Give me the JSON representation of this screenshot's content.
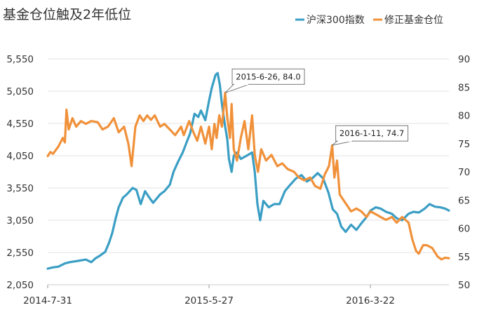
{
  "chart_data": {
    "type": "line",
    "title": "基金仓位触及2年低位",
    "xlabel": "",
    "ylabel": "",
    "x_start": "2014-07-31",
    "x_end": "2016-08-15",
    "x_ticks": [
      {
        "date": "2014-07-31",
        "label": "2014-7-31"
      },
      {
        "date": "2015-05-27",
        "label": "2015-5-27"
      },
      {
        "date": "2016-03-22",
        "label": "2016-3-22"
      }
    ],
    "ylim_left": [
      2050,
      5550
    ],
    "y_ticks_left": [
      "2,050",
      "2,550",
      "3,050",
      "3,550",
      "4,050",
      "4,550",
      "5,050",
      "5,550"
    ],
    "ylim_right": [
      50,
      90
    ],
    "y_ticks_right": [
      "50",
      "55",
      "60",
      "65",
      "70",
      "75",
      "80",
      "85",
      "90"
    ],
    "legend_position": "top-right",
    "grid": "horizontal",
    "series": [
      {
        "name": "沪深300指数",
        "axis": "left",
        "color": "#3a9ec4",
        "points": [
          [
            "2014-07-31",
            2300
          ],
          [
            "2014-08-10",
            2320
          ],
          [
            "2014-08-20",
            2330
          ],
          [
            "2014-09-01",
            2380
          ],
          [
            "2014-09-10",
            2400
          ],
          [
            "2014-09-25",
            2420
          ],
          [
            "2014-10-10",
            2440
          ],
          [
            "2014-10-20",
            2400
          ],
          [
            "2014-10-28",
            2460
          ],
          [
            "2014-11-05",
            2500
          ],
          [
            "2014-11-15",
            2560
          ],
          [
            "2014-11-22",
            2700
          ],
          [
            "2014-11-28",
            2850
          ],
          [
            "2014-12-05",
            3100
          ],
          [
            "2014-12-10",
            3250
          ],
          [
            "2014-12-18",
            3400
          ],
          [
            "2014-12-25",
            3450
          ],
          [
            "2015-01-05",
            3550
          ],
          [
            "2015-01-12",
            3520
          ],
          [
            "2015-01-20",
            3300
          ],
          [
            "2015-01-28",
            3500
          ],
          [
            "2015-02-05",
            3400
          ],
          [
            "2015-02-12",
            3320
          ],
          [
            "2015-02-25",
            3450
          ],
          [
            "2015-03-05",
            3500
          ],
          [
            "2015-03-15",
            3600
          ],
          [
            "2015-03-22",
            3800
          ],
          [
            "2015-03-30",
            3950
          ],
          [
            "2015-04-08",
            4100
          ],
          [
            "2015-04-15",
            4250
          ],
          [
            "2015-04-22",
            4400
          ],
          [
            "2015-04-30",
            4700
          ],
          [
            "2015-05-07",
            4650
          ],
          [
            "2015-05-12",
            4750
          ],
          [
            "2015-05-20",
            4600
          ],
          [
            "2015-05-27",
            4900
          ],
          [
            "2015-06-01",
            5100
          ],
          [
            "2015-06-08",
            5300
          ],
          [
            "2015-06-12",
            5330
          ],
          [
            "2015-06-16",
            5150
          ],
          [
            "2015-06-20",
            4850
          ],
          [
            "2015-06-26",
            4500
          ],
          [
            "2015-06-30",
            4300
          ],
          [
            "2015-07-03",
            4000
          ],
          [
            "2015-07-08",
            3800
          ],
          [
            "2015-07-12",
            4050
          ],
          [
            "2015-07-18",
            4100
          ],
          [
            "2015-07-25",
            4000
          ],
          [
            "2015-08-05",
            4050
          ],
          [
            "2015-08-15",
            4100
          ],
          [
            "2015-08-20",
            3800
          ],
          [
            "2015-08-25",
            3300
          ],
          [
            "2015-08-30",
            3050
          ],
          [
            "2015-09-05",
            3350
          ],
          [
            "2015-09-15",
            3250
          ],
          [
            "2015-09-25",
            3300
          ],
          [
            "2015-10-05",
            3300
          ],
          [
            "2015-10-15",
            3500
          ],
          [
            "2015-10-25",
            3600
          ],
          [
            "2015-11-05",
            3700
          ],
          [
            "2015-11-15",
            3750
          ],
          [
            "2015-11-25",
            3650
          ],
          [
            "2015-12-05",
            3700
          ],
          [
            "2015-12-15",
            3780
          ],
          [
            "2015-12-25",
            3700
          ],
          [
            "2016-01-04",
            3480
          ],
          [
            "2016-01-12",
            3220
          ],
          [
            "2016-01-20",
            3150
          ],
          [
            "2016-01-28",
            2950
          ],
          [
            "2016-02-05",
            2870
          ],
          [
            "2016-02-15",
            2980
          ],
          [
            "2016-02-25",
            2900
          ],
          [
            "2016-03-05",
            3000
          ],
          [
            "2016-03-15",
            3100
          ],
          [
            "2016-03-22",
            3200
          ],
          [
            "2016-04-01",
            3250
          ],
          [
            "2016-04-10",
            3230
          ],
          [
            "2016-04-20",
            3180
          ],
          [
            "2016-05-01",
            3150
          ],
          [
            "2016-05-10",
            3080
          ],
          [
            "2016-05-20",
            3050
          ],
          [
            "2016-06-01",
            3150
          ],
          [
            "2016-06-10",
            3180
          ],
          [
            "2016-06-20",
            3170
          ],
          [
            "2016-07-01",
            3230
          ],
          [
            "2016-07-10",
            3300
          ],
          [
            "2016-07-20",
            3260
          ],
          [
            "2016-07-30",
            3250
          ],
          [
            "2016-08-08",
            3230
          ],
          [
            "2016-08-15",
            3200
          ]
        ]
      },
      {
        "name": "修正基金仓位",
        "axis": "right",
        "color": "#f0913a",
        "points": [
          [
            "2014-07-31",
            72.8
          ],
          [
            "2014-08-05",
            73.5
          ],
          [
            "2014-08-10",
            73.2
          ],
          [
            "2014-08-20",
            74.5
          ],
          [
            "2014-08-28",
            76.0
          ],
          [
            "2014-09-01",
            75.2
          ],
          [
            "2014-09-04",
            81.0
          ],
          [
            "2014-09-08",
            77.5
          ],
          [
            "2014-09-15",
            79.5
          ],
          [
            "2014-09-22",
            78.0
          ],
          [
            "2014-10-01",
            79.0
          ],
          [
            "2014-10-10",
            78.5
          ],
          [
            "2014-10-20",
            79.0
          ],
          [
            "2014-11-01",
            78.8
          ],
          [
            "2014-11-10",
            77.5
          ],
          [
            "2014-11-20",
            78.0
          ],
          [
            "2014-12-01",
            79.5
          ],
          [
            "2014-12-10",
            77.0
          ],
          [
            "2014-12-20",
            78.0
          ],
          [
            "2014-12-28",
            75.0
          ],
          [
            "2015-01-03",
            71.0
          ],
          [
            "2015-01-10",
            78.0
          ],
          [
            "2015-01-18",
            80.0
          ],
          [
            "2015-01-25",
            79.0
          ],
          [
            "2015-02-01",
            80.0
          ],
          [
            "2015-02-08",
            79.2
          ],
          [
            "2015-02-15",
            80.0
          ],
          [
            "2015-02-25",
            78.0
          ],
          [
            "2015-03-05",
            78.5
          ],
          [
            "2015-03-15",
            77.5
          ],
          [
            "2015-03-25",
            76.5
          ],
          [
            "2015-04-05",
            78.0
          ],
          [
            "2015-04-10",
            76.5
          ],
          [
            "2015-04-20",
            79.0
          ],
          [
            "2015-04-28",
            77.0
          ],
          [
            "2015-05-05",
            75.5
          ],
          [
            "2015-05-12",
            78.0
          ],
          [
            "2015-05-20",
            75.0
          ],
          [
            "2015-05-27",
            78.0
          ],
          [
            "2015-06-01",
            74.0
          ],
          [
            "2015-06-06",
            78.5
          ],
          [
            "2015-06-10",
            76.0
          ],
          [
            "2015-06-15",
            80.0
          ],
          [
            "2015-06-20",
            78.0
          ],
          [
            "2015-06-26",
            84.0
          ],
          [
            "2015-06-30",
            79.5
          ],
          [
            "2015-07-05",
            76.0
          ],
          [
            "2015-07-08",
            82.0
          ],
          [
            "2015-07-12",
            74.0
          ],
          [
            "2015-07-18",
            72.0
          ],
          [
            "2015-07-25",
            76.0
          ],
          [
            "2015-08-01",
            79.0
          ],
          [
            "2015-08-08",
            74.0
          ],
          [
            "2015-08-15",
            80.0
          ],
          [
            "2015-08-20",
            73.0
          ],
          [
            "2015-08-26",
            70.0
          ],
          [
            "2015-09-01",
            74.0
          ],
          [
            "2015-09-10",
            72.0
          ],
          [
            "2015-09-20",
            73.0
          ],
          [
            "2015-10-01",
            71.0
          ],
          [
            "2015-10-10",
            71.5
          ],
          [
            "2015-10-20",
            70.5
          ],
          [
            "2015-11-01",
            70.0
          ],
          [
            "2015-11-10",
            69.0
          ],
          [
            "2015-11-20",
            68.5
          ],
          [
            "2015-12-01",
            69.0
          ],
          [
            "2015-12-10",
            67.5
          ],
          [
            "2015-12-20",
            67.0
          ],
          [
            "2015-12-28",
            69.5
          ],
          [
            "2016-01-05",
            71.0
          ],
          [
            "2016-01-11",
            74.7
          ],
          [
            "2016-01-15",
            69.0
          ],
          [
            "2016-01-20",
            72.0
          ],
          [
            "2016-01-25",
            66.0
          ],
          [
            "2016-02-01",
            65.0
          ],
          [
            "2016-02-08",
            64.0
          ],
          [
            "2016-02-15",
            63.0
          ],
          [
            "2016-02-25",
            63.5
          ],
          [
            "2016-03-05",
            63.0
          ],
          [
            "2016-03-15",
            62.0
          ],
          [
            "2016-03-22",
            63.0
          ],
          [
            "2016-04-01",
            62.5
          ],
          [
            "2016-04-10",
            62.0
          ],
          [
            "2016-04-20",
            61.5
          ],
          [
            "2016-05-01",
            62.0
          ],
          [
            "2016-05-10",
            61.0
          ],
          [
            "2016-05-20",
            62.0
          ],
          [
            "2016-06-01",
            61.0
          ],
          [
            "2016-06-08",
            58.0
          ],
          [
            "2016-06-15",
            56.0
          ],
          [
            "2016-06-20",
            55.5
          ],
          [
            "2016-06-28",
            57.0
          ],
          [
            "2016-07-05",
            57.0
          ],
          [
            "2016-07-15",
            56.5
          ],
          [
            "2016-07-25",
            55.0
          ],
          [
            "2016-08-01",
            54.5
          ],
          [
            "2016-08-08",
            54.8
          ],
          [
            "2016-08-15",
            54.7
          ]
        ]
      }
    ],
    "annotations": [
      {
        "series": "修正基金仓位",
        "date": "2015-06-26",
        "value": 84.0,
        "text": "2015-6-26, 84.0"
      },
      {
        "series": "修正基金仓位",
        "date": "2016-01-11",
        "value": 74.7,
        "text": "2016-1-11, 74.7"
      }
    ]
  }
}
